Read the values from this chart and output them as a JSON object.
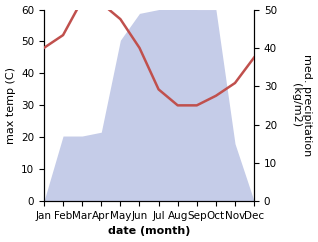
{
  "months": [
    "Jan",
    "Feb",
    "Mar",
    "Apr",
    "May",
    "Jun",
    "Jul",
    "Aug",
    "Sep",
    "Oct",
    "Nov",
    "Dec"
  ],
  "month_indices": [
    1,
    2,
    3,
    4,
    5,
    6,
    7,
    8,
    9,
    10,
    11,
    12
  ],
  "temperature": [
    48,
    52,
    63,
    62,
    57,
    48,
    35,
    30,
    30,
    33,
    37,
    45
  ],
  "precipitation": [
    0,
    17,
    17,
    18,
    42,
    49,
    50,
    52,
    50,
    50,
    15,
    0
  ],
  "temp_color": "#c0504d",
  "precip_fill_color": "#c5cce8",
  "background_color": "#ffffff",
  "ylabel_left": "max temp (C)",
  "ylabel_right": "med. precipitation\n(kg/m2)",
  "xlabel": "date (month)",
  "ylim_left": [
    0,
    60
  ],
  "ylim_right": [
    0,
    50
  ],
  "yticks_left": [
    0,
    10,
    20,
    30,
    40,
    50,
    60
  ],
  "yticks_right": [
    0,
    10,
    20,
    30,
    40,
    50
  ],
  "label_fontsize": 8,
  "tick_fontsize": 7.5
}
